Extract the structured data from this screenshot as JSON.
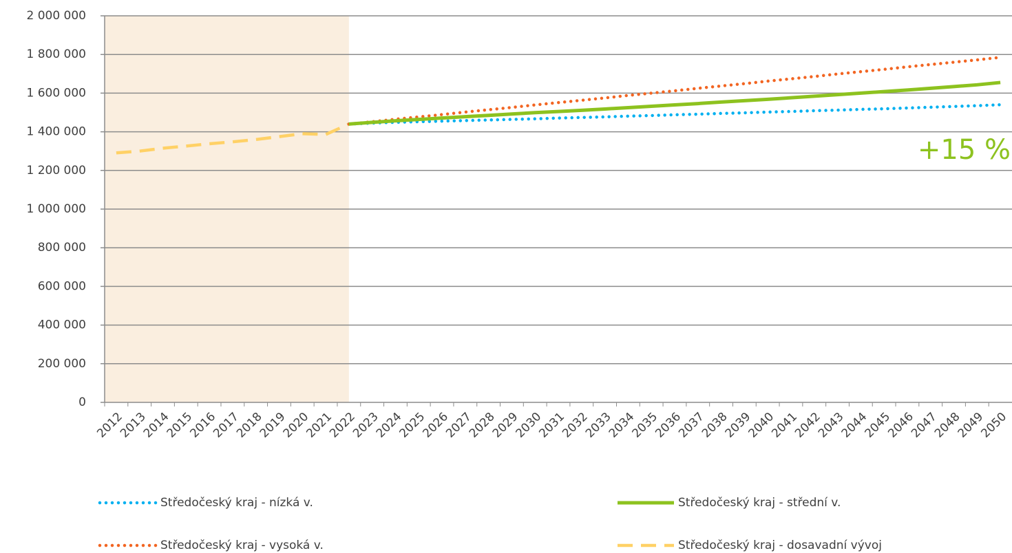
{
  "chart_data": {
    "type": "line",
    "categories": [
      "2012",
      "2013",
      "2014",
      "2015",
      "2016",
      "2017",
      "2018",
      "2019",
      "2020",
      "2021",
      "2022",
      "2023",
      "2024",
      "2025",
      "2026",
      "2027",
      "2028",
      "2029",
      "2030",
      "2031",
      "2032",
      "2033",
      "2034",
      "2035",
      "2036",
      "2037",
      "2038",
      "2039",
      "2040",
      "2041",
      "2042",
      "2043",
      "2044",
      "2045",
      "2046",
      "2047",
      "2048",
      "2049",
      "2050"
    ],
    "series": [
      {
        "name": "Středočeský kraj - nízká v.",
        "color": "#00b0f0",
        "style": "dotted",
        "values": [
          null,
          null,
          null,
          null,
          null,
          null,
          null,
          null,
          null,
          null,
          1440000,
          1445000,
          1449000,
          1452000,
          1455000,
          1458000,
          1461000,
          1464000,
          1467000,
          1471000,
          1474000,
          1477000,
          1481000,
          1484000,
          1488000,
          1491000,
          1495000,
          1498000,
          1502000,
          1505000,
          1509000,
          1512000,
          1516000,
          1519000,
          1523000,
          1527000,
          1531000,
          1535000,
          1540000
        ]
      },
      {
        "name": "Středočeský kraj - střední v.",
        "color": "#8dc21f",
        "style": "solid",
        "values": [
          null,
          null,
          null,
          null,
          null,
          null,
          null,
          null,
          null,
          null,
          1440000,
          1449000,
          1457000,
          1464000,
          1471000,
          1478000,
          1485000,
          1492000,
          1499000,
          1505000,
          1511000,
          1518000,
          1525000,
          1532000,
          1539000,
          1546000,
          1554000,
          1561000,
          1568000,
          1576000,
          1584000,
          1592000,
          1600000,
          1608000,
          1616000,
          1625000,
          1634000,
          1643000,
          1655000
        ]
      },
      {
        "name": "Středočeský kraj - vysoká v.",
        "color": "#f26522",
        "style": "dotted",
        "values": [
          null,
          null,
          null,
          null,
          null,
          null,
          null,
          null,
          null,
          null,
          1440000,
          1452000,
          1465000,
          1477000,
          1489000,
          1502000,
          1514000,
          1526000,
          1539000,
          1551000,
          1563000,
          1575000,
          1588000,
          1600000,
          1612000,
          1625000,
          1637000,
          1649000,
          1662000,
          1674000,
          1686000,
          1699000,
          1711000,
          1723000,
          1736000,
          1748000,
          1760000,
          1772000,
          1785000
        ]
      },
      {
        "name": "Středočeský kraj - dosavadní vývoj",
        "color": "#ffd166",
        "style": "dashed",
        "values": [
          1291000,
          1300000,
          1315000,
          1326000,
          1338000,
          1348000,
          1360000,
          1375000,
          1390000,
          1386000,
          1440000,
          null,
          null,
          null,
          null,
          null,
          null,
          null,
          null,
          null,
          null,
          null,
          null,
          null,
          null,
          null,
          null,
          null,
          null,
          null,
          null,
          null,
          null,
          null,
          null,
          null,
          null,
          null,
          null
        ]
      }
    ],
    "ylim": [
      0,
      2000000
    ],
    "yticks": [
      0,
      {
        "value": 200000,
        "label": "200 000"
      },
      {
        "value": 400000,
        "label": "400 000"
      },
      {
        "value": 600000,
        "label": "600 000"
      },
      {
        "value": 800000,
        "label": "800 000"
      },
      {
        "value": 1000000,
        "label": "1 000 000"
      },
      {
        "value": 1200000,
        "label": "1 200 000"
      },
      {
        "value": 1400000,
        "label": "1 400 000"
      },
      {
        "value": 1600000,
        "label": "1 600 000"
      },
      {
        "value": 1800000,
        "label": "1 800 000"
      },
      {
        "value": 2000000,
        "label": "2 000 000"
      }
    ],
    "grid": true,
    "shade": {
      "from": "2012",
      "to": "2022",
      "color": "#faeedf"
    },
    "annotation": {
      "text": "+15 %",
      "color": "#8dc21f"
    }
  }
}
